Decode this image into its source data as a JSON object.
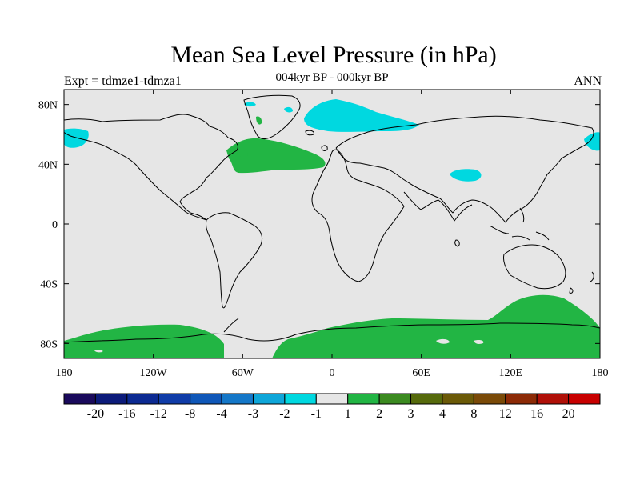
{
  "map": {
    "title": "Mean Sea Level Pressure (in hPa)",
    "subtitle": "004kyr BP - 000kyr BP",
    "left_label": "Expt = tdmze1-tdmza1",
    "right_label": "ANN",
    "lat_ticks": [
      "80N",
      "40N",
      "0",
      "40S",
      "80S"
    ],
    "lon_ticks": [
      "180",
      "120W",
      "60W",
      "0",
      "60E",
      "120E",
      "180"
    ],
    "colors": {
      "land_sea_background": "#e6e6e6",
      "positive_1_2": "#22b544",
      "negative_1_2": "#00d8e0",
      "coastline": "#000000"
    },
    "colorbar": {
      "colors": [
        "#1a0a5c",
        "#0c1b7a",
        "#0c2a92",
        "#103ca8",
        "#0f57b8",
        "#1477c8",
        "#0ea6d9",
        "#00d8e0",
        "#e6e6e6",
        "#22b544",
        "#3b8a20",
        "#566a0c",
        "#6b5a08",
        "#7a4a08",
        "#8c2a06",
        "#b01008",
        "#c80000"
      ],
      "labels": [
        "-20",
        "-16",
        "-12",
        "-8",
        "-4",
        "-3",
        "-2",
        "-1",
        "1",
        "2",
        "3",
        "4",
        "8",
        "12",
        "16",
        "20"
      ]
    }
  }
}
